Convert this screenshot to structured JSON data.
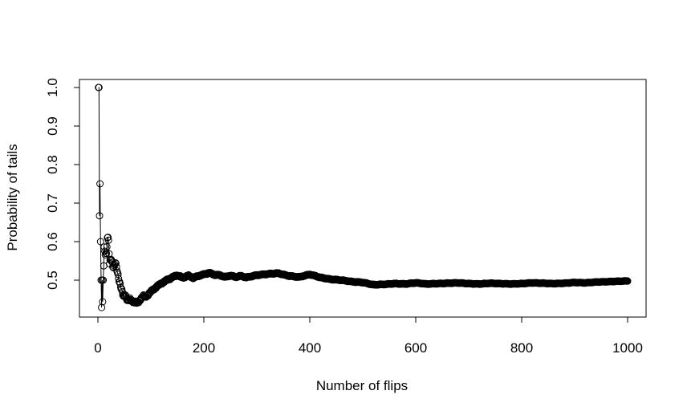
{
  "chart_data": {
    "type": "scatter",
    "title": "",
    "xlabel": "Number of flips",
    "ylabel": "Probability of tails",
    "xlim": [
      0,
      1000
    ],
    "ylim": [
      0.43,
      1.0
    ],
    "x_ticks": [
      0,
      200,
      400,
      600,
      800,
      1000
    ],
    "y_ticks": [
      0.5,
      0.6,
      0.7,
      0.8,
      0.9,
      1.0
    ],
    "x_tick_labels": [
      "0",
      "200",
      "400",
      "600",
      "800",
      "1000"
    ],
    "y_tick_labels": [
      "0.5",
      "0.6",
      "0.7",
      "0.8",
      "0.9",
      "1.0"
    ],
    "grid": false,
    "marker": "open-circle",
    "connected": true,
    "point_count": 1000,
    "series": [
      {
        "x": [
          1,
          2,
          3,
          4,
          5,
          6,
          7,
          8,
          9,
          10,
          12,
          14,
          16,
          18,
          20,
          22,
          25,
          28,
          30,
          33,
          36,
          40,
          44,
          48,
          52,
          56,
          60,
          65,
          70,
          75,
          80,
          85,
          90,
          95,
          100,
          110,
          120,
          130,
          140,
          150,
          160,
          170,
          180,
          190,
          200,
          210,
          220,
          230,
          240,
          250,
          260,
          270,
          280,
          290,
          300,
          320,
          340,
          360,
          380,
          400,
          420,
          440,
          460,
          480,
          500,
          520,
          540,
          560,
          580,
          600,
          620,
          640,
          660,
          680,
          700,
          720,
          740,
          760,
          780,
          800,
          820,
          840,
          860,
          880,
          900,
          920,
          940,
          960,
          980,
          1000
        ],
        "y": [
          1.0,
          1.0,
          0.667,
          0.75,
          0.6,
          0.5,
          0.429,
          0.5,
          0.444,
          0.5,
          0.583,
          0.571,
          0.5625,
          0.611,
          0.6,
          0.545,
          0.56,
          0.536,
          0.533,
          0.545,
          0.528,
          0.5,
          0.477,
          0.458,
          0.462,
          0.446,
          0.45,
          0.446,
          0.443,
          0.44,
          0.45,
          0.459,
          0.456,
          0.463,
          0.47,
          0.482,
          0.492,
          0.5,
          0.507,
          0.513,
          0.506,
          0.512,
          0.506,
          0.511,
          0.515,
          0.519,
          0.514,
          0.513,
          0.508,
          0.512,
          0.508,
          0.511,
          0.507,
          0.51,
          0.513,
          0.516,
          0.518,
          0.511,
          0.508,
          0.515,
          0.507,
          0.502,
          0.5,
          0.496,
          0.494,
          0.488,
          0.489,
          0.491,
          0.49,
          0.493,
          0.49,
          0.491,
          0.492,
          0.493,
          0.491,
          0.49,
          0.492,
          0.491,
          0.49,
          0.491,
          0.493,
          0.492,
          0.491,
          0.492,
          0.494,
          0.493,
          0.495,
          0.496,
          0.497,
          0.498
        ]
      }
    ]
  }
}
